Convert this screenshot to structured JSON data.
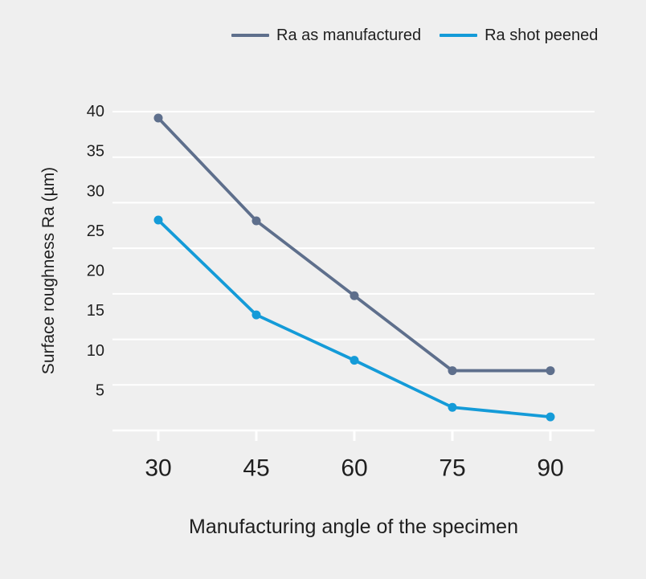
{
  "chart_data": {
    "type": "line",
    "x_categories": [
      "30",
      "45",
      "60",
      "75",
      "90"
    ],
    "series": [
      {
        "name": "Ra as manufactured",
        "color": "#5e6f8c",
        "values": [
          39.2,
          26.3,
          16.9,
          7.5,
          7.5
        ]
      },
      {
        "name": "Ra shot peened",
        "color": "#149bd8",
        "values": [
          26.4,
          14.5,
          8.8,
          2.9,
          1.7
        ]
      }
    ],
    "xlabel": "Manufacturing angle of the specimen",
    "ylabel": "Surface roughness Ra (µm)",
    "ylim": [
      0,
      40
    ],
    "yticks": [
      5,
      10,
      15,
      20,
      25,
      30,
      35,
      40
    ],
    "grid": {
      "style": "horizontal",
      "line_count": 8,
      "color": "#ffffff"
    },
    "legend_position": "top-center",
    "marker": "circle"
  },
  "colors": {
    "background": "#efefef",
    "gridline": "#ffffff",
    "text": "#1f1f1f",
    "series_manufactured": "#5e6f8c",
    "series_shot_peened": "#149bd8"
  }
}
